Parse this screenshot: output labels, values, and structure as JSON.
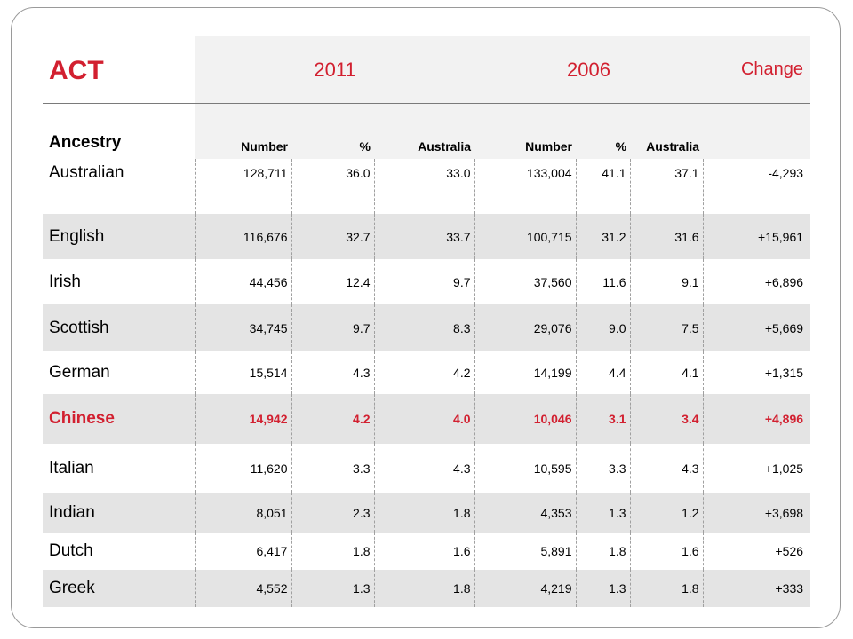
{
  "title": "ACT",
  "year_2011": "2011",
  "year_2006": "2006",
  "change_label": "Change",
  "ancestry_label": "Ancestry",
  "sub_number": "Number",
  "sub_pct": "%",
  "sub_australia": "Australia",
  "highlight_color": "#d22030",
  "rows": [
    {
      "name": "Australian",
      "n2011": "128,711",
      "p2011": "36.0",
      "a2011": "33.0",
      "n2006": "133,004",
      "p2006": "41.1",
      "a2006": "37.1",
      "change": "-4,293"
    },
    {
      "name": "English",
      "n2011": "116,676",
      "p2011": "32.7",
      "a2011": "33.7",
      "n2006": "100,715",
      "p2006": "31.2",
      "a2006": "31.6",
      "change": "+15,961"
    },
    {
      "name": "Irish",
      "n2011": "44,456",
      "p2011": "12.4",
      "a2011": "9.7",
      "n2006": "37,560",
      "p2006": "11.6",
      "a2006": "9.1",
      "change": "+6,896"
    },
    {
      "name": "Scottish",
      "n2011": "34,745",
      "p2011": "9.7",
      "a2011": "8.3",
      "n2006": "29,076",
      "p2006": "9.0",
      "a2006": "7.5",
      "change": "+5,669"
    },
    {
      "name": "German",
      "n2011": "15,514",
      "p2011": "4.3",
      "a2011": "4.2",
      "n2006": "14,199",
      "p2006": "4.4",
      "a2006": "4.1",
      "change": "+1,315"
    },
    {
      "name": "Chinese",
      "n2011": "14,942",
      "p2011": "4.2",
      "a2011": "4.0",
      "n2006": "10,046",
      "p2006": "3.1",
      "a2006": "3.4",
      "change": "+4,896"
    },
    {
      "name": "Italian",
      "n2011": "11,620",
      "p2011": "3.3",
      "a2011": "4.3",
      "n2006": "10,595",
      "p2006": "3.3",
      "a2006": "4.3",
      "change": "+1,025"
    },
    {
      "name": "Indian",
      "n2011": "8,051",
      "p2011": "2.3",
      "a2011": "1.8",
      "n2006": "4,353",
      "p2006": "1.3",
      "a2006": "1.2",
      "change": "+3,698"
    },
    {
      "name": "Dutch",
      "n2011": "6,417",
      "p2011": "1.8",
      "a2011": "1.6",
      "n2006": "5,891",
      "p2006": "1.8",
      "a2006": "1.6",
      "change": "+526"
    },
    {
      "name": "Greek",
      "n2011": "4,552",
      "p2011": "1.3",
      "a2011": "1.8",
      "n2006": "4,219",
      "p2006": "1.3",
      "a2006": "1.8",
      "change": "+333"
    }
  ]
}
